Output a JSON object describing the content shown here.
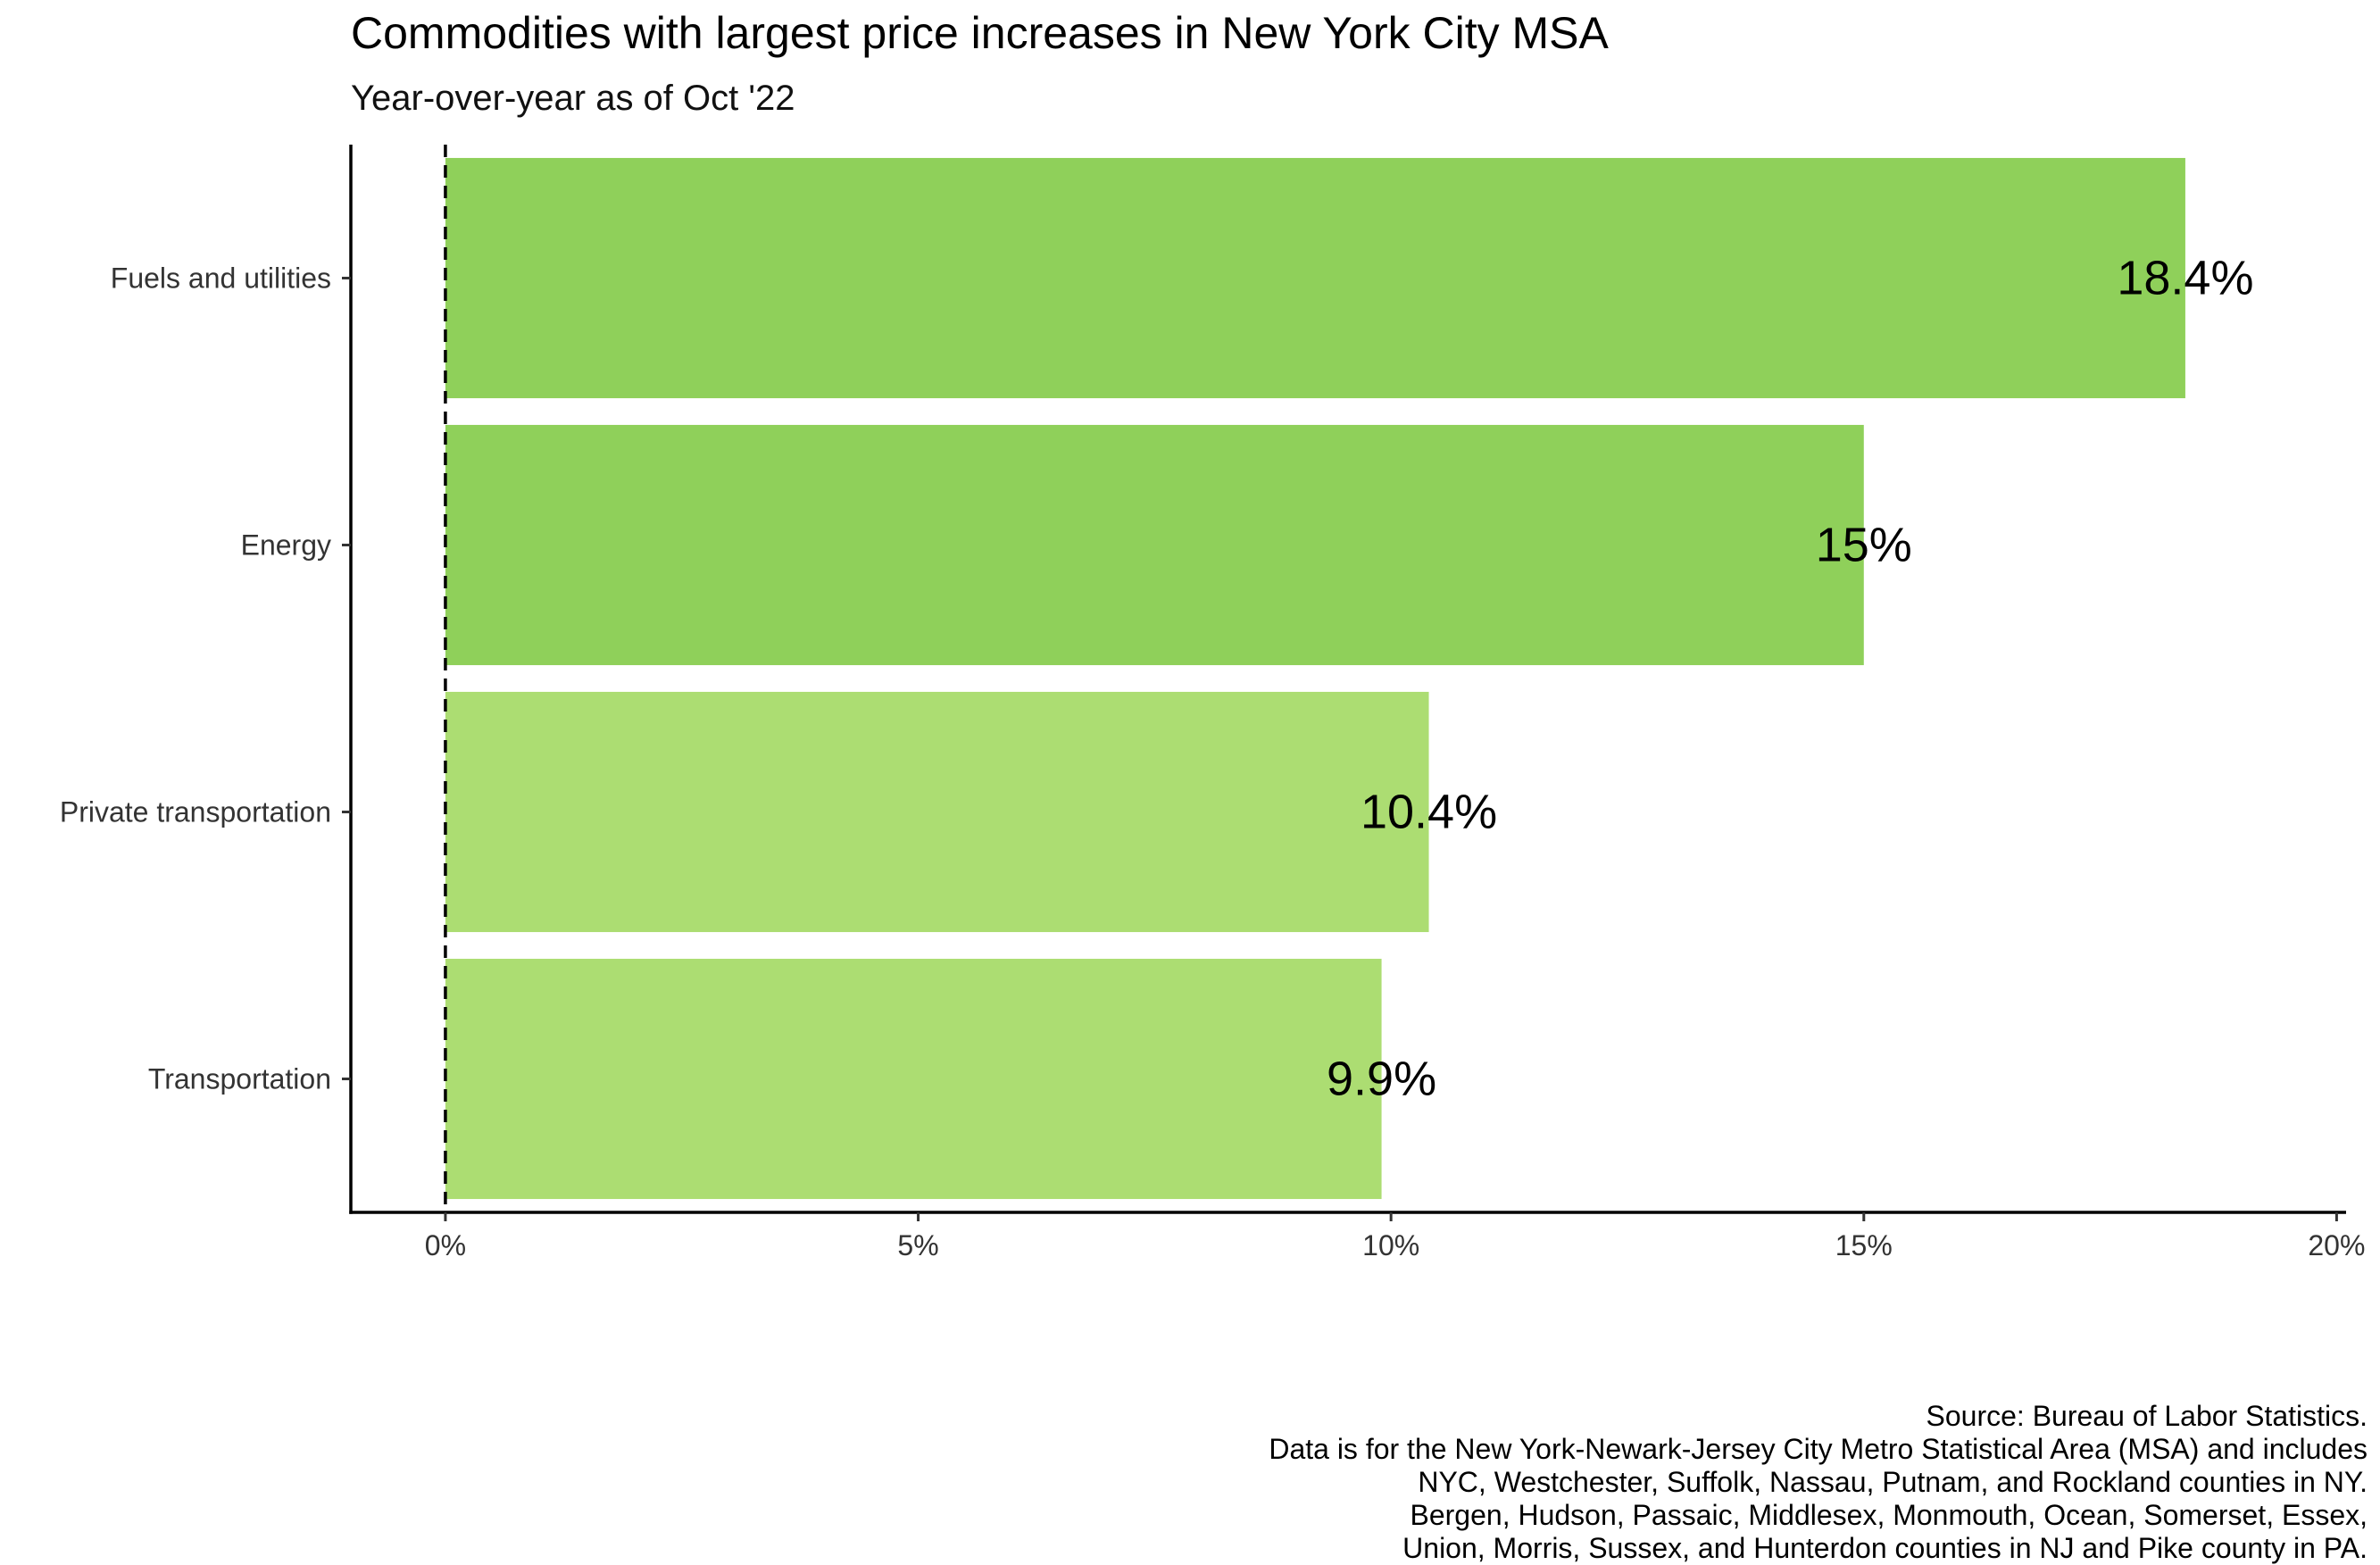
{
  "chart_data": {
    "type": "bar",
    "orientation": "horizontal",
    "title": "Commodities with largest price increases in New York City MSA",
    "subtitle": "Year-over-year as of Oct '22",
    "xlabel": "",
    "ylabel": "",
    "categories": [
      "Fuels and utilities",
      "Energy",
      "Private transportation",
      "Transportation"
    ],
    "values": [
      18.4,
      15.0,
      10.4,
      9.9
    ],
    "value_labels": [
      "18.4%",
      "15%",
      "10.4%",
      "9.9%"
    ],
    "bar_colors": [
      "#8fd05a",
      "#8fd05a",
      "#acdd72",
      "#acdd72"
    ],
    "xlim": [
      -1,
      20.1
    ],
    "x_ticks": [
      0,
      5,
      10,
      15,
      20
    ],
    "x_tick_labels": [
      "0%",
      "5%",
      "10%",
      "15%",
      "20%"
    ],
    "reference_line": 0,
    "grid": false,
    "caption": [
      "Source: Bureau of Labor Statistics.",
      "Data is for the New York-Newark-Jersey City Metro Statistical Area (MSA) and includes",
      "NYC, Westchester, Suffolk, Nassau, Putnam, and Rockland counties in NY.",
      "Bergen, Hudson, Passaic, Middlesex, Monmouth, Ocean, Somerset, Essex,",
      "Union, Morris, Sussex, and Hunterdon counties in NJ and Pike county in PA."
    ]
  }
}
